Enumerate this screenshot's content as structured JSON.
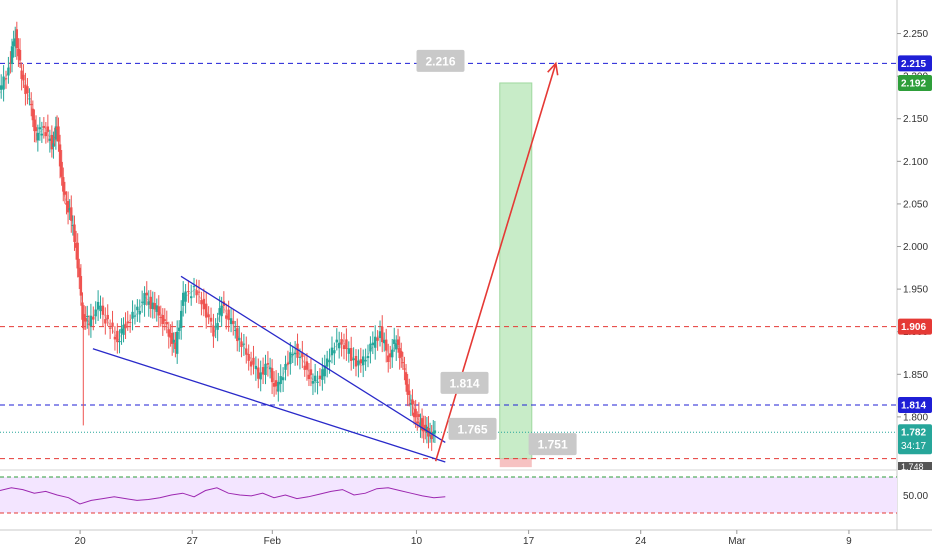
{
  "chart_data": {
    "type": "line",
    "symbol_chart": "candlestick",
    "y_axis": {
      "range": [
        1.74,
        2.28
      ],
      "ticks": [
        "2.250",
        "2.200",
        "2.150",
        "2.100",
        "2.050",
        "2.000",
        "1.950",
        "1.900",
        "1.850",
        "1.800"
      ],
      "tick_values": [
        2.25,
        2.2,
        2.15,
        2.1,
        2.05,
        2.0,
        1.95,
        1.9,
        1.85,
        1.8
      ],
      "position": "right"
    },
    "x_axis": {
      "range": [
        0,
        56
      ],
      "ticks": [
        {
          "label": "20",
          "x": 5
        },
        {
          "label": "27",
          "x": 12
        },
        {
          "label": "Feb",
          "x": 17
        },
        {
          "label": "10",
          "x": 26
        },
        {
          "label": "17",
          "x": 33
        },
        {
          "label": "24",
          "x": 40
        },
        {
          "label": "Mar",
          "x": 46
        },
        {
          "label": "9",
          "x": 53
        }
      ]
    },
    "price_path": [
      [
        0,
        2.18
      ],
      [
        0.6,
        2.21
      ],
      [
        1.0,
        2.25
      ],
      [
        1.4,
        2.2
      ],
      [
        1.9,
        2.17
      ],
      [
        2.3,
        2.13
      ],
      [
        2.8,
        2.14
      ],
      [
        3.3,
        2.12
      ],
      [
        3.6,
        2.14
      ],
      [
        4.0,
        2.06
      ],
      [
        4.4,
        2.04
      ],
      [
        4.8,
        2.0
      ],
      [
        5.2,
        1.92
      ],
      [
        5.6,
        1.91
      ],
      [
        6.2,
        1.93
      ],
      [
        6.8,
        1.91
      ],
      [
        7.4,
        1.89
      ],
      [
        7.9,
        1.91
      ],
      [
        8.5,
        1.92
      ],
      [
        9.1,
        1.94
      ],
      [
        9.6,
        1.93
      ],
      [
        10.1,
        1.92
      ],
      [
        10.6,
        1.9
      ],
      [
        11.0,
        1.88
      ],
      [
        11.5,
        1.94
      ],
      [
        12.2,
        1.95
      ],
      [
        12.8,
        1.93
      ],
      [
        13.4,
        1.9
      ],
      [
        13.9,
        1.93
      ],
      [
        14.5,
        1.91
      ],
      [
        15.0,
        1.89
      ],
      [
        15.6,
        1.87
      ],
      [
        16.2,
        1.85
      ],
      [
        16.8,
        1.86
      ],
      [
        17.3,
        1.83
      ],
      [
        17.9,
        1.86
      ],
      [
        18.5,
        1.88
      ],
      [
        19.1,
        1.86
      ],
      [
        19.6,
        1.84
      ],
      [
        20.2,
        1.85
      ],
      [
        20.8,
        1.88
      ],
      [
        21.4,
        1.89
      ],
      [
        22.0,
        1.87
      ],
      [
        22.6,
        1.86
      ],
      [
        23.2,
        1.88
      ],
      [
        23.8,
        1.9
      ],
      [
        24.3,
        1.87
      ],
      [
        24.8,
        1.89
      ],
      [
        25.2,
        1.86
      ],
      [
        25.6,
        1.82
      ],
      [
        26.0,
        1.8
      ],
      [
        26.4,
        1.79
      ],
      [
        26.8,
        1.78
      ],
      [
        27.2,
        1.78
      ]
    ],
    "current_price_label": "1.782",
    "countdown_label": "34:17",
    "lower_axis_label": "1.748",
    "horizontal_levels": [
      {
        "value": 2.215,
        "label": "2.215",
        "style": "dashed",
        "color": "#1f1fd6"
      },
      {
        "value": 1.906,
        "label": "1.906",
        "style": "dashed",
        "color": "#e53935"
      },
      {
        "value": 1.814,
        "label": "1.814",
        "style": "dashed",
        "color": "#1f1fd6"
      },
      {
        "value": 1.751,
        "style": "dashed",
        "color": "#e53935"
      }
    ],
    "target_level": {
      "value": 2.192,
      "label": "2.192"
    },
    "trendlines": [
      {
        "from": [
          11.3,
          1.965
        ],
        "to": [
          27.8,
          1.77
        ],
        "color": "#2929c9"
      },
      {
        "from": [
          5.8,
          1.88
        ],
        "to": [
          27.8,
          1.747
        ],
        "color": "#2929c9"
      }
    ],
    "projection_arrow": {
      "from": [
        27.2,
        1.748
      ],
      "to": [
        34.7,
        2.215
      ],
      "color": "#e53935"
    },
    "position_box": {
      "x_start": 31.2,
      "x_end": 33.2,
      "entry": 1.751,
      "stop": 1.741,
      "target": 2.192
    },
    "callouts": [
      {
        "label": "2.216",
        "x": 27.5,
        "value": 2.218
      },
      {
        "label": "1.814",
        "x": 29.0,
        "value": 1.84
      },
      {
        "label": "1.765",
        "x": 29.5,
        "value": 1.786
      },
      {
        "label": "1.751",
        "x": 34.5,
        "value": 1.768
      }
    ],
    "rsi": {
      "label": "50.00",
      "values": [
        55,
        58,
        56,
        52,
        54,
        50,
        47,
        40,
        44,
        46,
        48,
        46,
        44,
        45,
        47,
        50,
        52,
        48,
        55,
        58,
        52,
        50,
        49,
        52,
        47,
        50,
        46,
        48,
        51,
        54,
        56,
        50,
        52,
        57,
        58,
        55,
        52,
        49,
        47,
        48
      ]
    },
    "colors": {
      "up": "#26a69a",
      "down": "#ef5350",
      "rsi_line": "#9c27b0",
      "rsi_band": "#f3e5ff",
      "profit_zone": "#c8ecc8",
      "loss_zone": "#f6c2c2"
    }
  }
}
